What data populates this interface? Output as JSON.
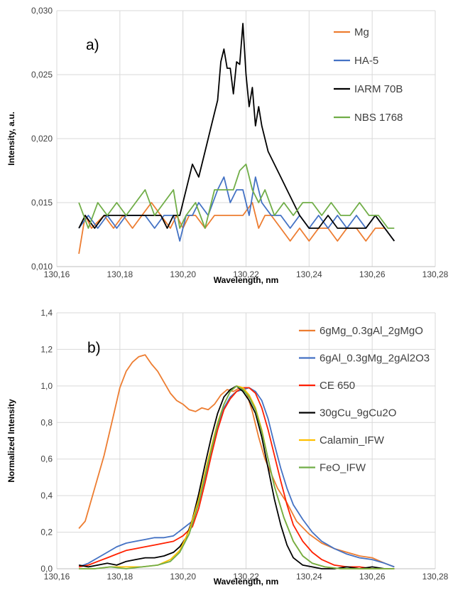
{
  "chart_data": [
    {
      "type": "line",
      "panel_label": "a)",
      "xlabel": "Wavelength, nm",
      "ylabel": "Intensity, a.u.",
      "xlim": [
        130.16,
        130.28
      ],
      "ylim": [
        0.01,
        0.03
      ],
      "x_ticks": [
        "130,16",
        "130,18",
        "130,20",
        "130,22",
        "130,24",
        "130,26",
        "130,28"
      ],
      "y_ticks": [
        "0,010",
        "0,015",
        "0,020",
        "0,025",
        "0,030"
      ],
      "grid": true,
      "legend_position": "right",
      "series": [
        {
          "name": "Mg",
          "color": "#ED7D31",
          "x": [
            130.167,
            130.169,
            130.171,
            130.175,
            130.178,
            130.181,
            130.184,
            130.187,
            130.19,
            130.193,
            130.196,
            130.198,
            130.2,
            130.202,
            130.204,
            130.207,
            130.21,
            130.213,
            130.216,
            130.219,
            130.222,
            130.224,
            130.226,
            130.228,
            130.231,
            130.234,
            130.237,
            130.24,
            130.243,
            130.246,
            130.249,
            130.252,
            130.255,
            130.258,
            130.261,
            130.264,
            130.267
          ],
          "y": [
            0.011,
            0.014,
            0.013,
            0.014,
            0.013,
            0.014,
            0.013,
            0.014,
            0.015,
            0.014,
            0.013,
            0.014,
            0.013,
            0.014,
            0.014,
            0.013,
            0.014,
            0.014,
            0.014,
            0.014,
            0.015,
            0.013,
            0.014,
            0.014,
            0.013,
            0.012,
            0.013,
            0.012,
            0.013,
            0.013,
            0.012,
            0.013,
            0.013,
            0.012,
            0.013,
            0.013,
            0.012
          ]
        },
        {
          "name": "HA-5",
          "color": "#4472C4",
          "x": [
            130.167,
            130.17,
            130.173,
            130.176,
            130.179,
            130.182,
            130.185,
            130.188,
            130.191,
            130.194,
            130.197,
            130.199,
            130.201,
            130.203,
            130.205,
            130.208,
            130.211,
            130.213,
            130.215,
            130.217,
            130.219,
            130.221,
            130.223,
            130.225,
            130.228,
            130.231,
            130.234,
            130.237,
            130.24,
            130.243,
            130.246,
            130.249,
            130.252,
            130.255,
            130.258,
            130.261,
            130.264,
            130.267
          ],
          "y": [
            0.013,
            0.014,
            0.013,
            0.014,
            0.013,
            0.014,
            0.014,
            0.014,
            0.013,
            0.014,
            0.014,
            0.012,
            0.014,
            0.014,
            0.015,
            0.014,
            0.016,
            0.017,
            0.015,
            0.016,
            0.016,
            0.014,
            0.017,
            0.015,
            0.014,
            0.014,
            0.013,
            0.014,
            0.013,
            0.014,
            0.013,
            0.014,
            0.013,
            0.014,
            0.013,
            0.014,
            0.013,
            0.012
          ]
        },
        {
          "name": "IARM 70B",
          "color": "#000000",
          "x": [
            130.167,
            130.169,
            130.172,
            130.175,
            130.178,
            130.181,
            130.184,
            130.187,
            130.19,
            130.193,
            130.195,
            130.197,
            130.199,
            130.201,
            130.203,
            130.205,
            130.207,
            130.209,
            130.211,
            130.212,
            130.213,
            130.214,
            130.215,
            130.216,
            130.217,
            130.218,
            130.219,
            130.22,
            130.221,
            130.222,
            130.223,
            130.224,
            130.225,
            130.227,
            130.229,
            130.231,
            130.233,
            130.235,
            130.237,
            130.24,
            130.243,
            130.246,
            130.249,
            130.252,
            130.255,
            130.258,
            130.261,
            130.264,
            130.267
          ],
          "y": [
            0.013,
            0.014,
            0.013,
            0.014,
            0.014,
            0.014,
            0.014,
            0.014,
            0.014,
            0.014,
            0.013,
            0.014,
            0.014,
            0.016,
            0.018,
            0.017,
            0.019,
            0.021,
            0.023,
            0.026,
            0.027,
            0.0255,
            0.0255,
            0.0235,
            0.026,
            0.0258,
            0.029,
            0.025,
            0.0225,
            0.024,
            0.021,
            0.0225,
            0.021,
            0.019,
            0.018,
            0.017,
            0.016,
            0.015,
            0.014,
            0.013,
            0.013,
            0.014,
            0.013,
            0.013,
            0.013,
            0.013,
            0.014,
            0.013,
            0.012
          ]
        },
        {
          "name": "NBS 1768",
          "color": "#70AD47",
          "x": [
            130.167,
            130.17,
            130.173,
            130.176,
            130.179,
            130.182,
            130.185,
            130.188,
            130.191,
            130.194,
            130.197,
            130.199,
            130.201,
            130.204,
            130.207,
            130.21,
            130.213,
            130.216,
            130.218,
            130.22,
            130.222,
            130.224,
            130.226,
            130.229,
            130.232,
            130.235,
            130.238,
            130.241,
            130.244,
            130.247,
            130.25,
            130.253,
            130.256,
            130.259,
            130.262,
            130.265,
            130.267
          ],
          "y": [
            0.015,
            0.013,
            0.015,
            0.014,
            0.015,
            0.014,
            0.015,
            0.016,
            0.014,
            0.015,
            0.016,
            0.013,
            0.014,
            0.015,
            0.013,
            0.016,
            0.016,
            0.016,
            0.0175,
            0.018,
            0.016,
            0.015,
            0.016,
            0.014,
            0.015,
            0.014,
            0.015,
            0.015,
            0.014,
            0.015,
            0.014,
            0.014,
            0.015,
            0.014,
            0.014,
            0.013,
            0.013
          ]
        }
      ]
    },
    {
      "type": "line",
      "panel_label": "b)",
      "xlabel": "Wavelength, nm",
      "ylabel": "Normalized Intensity",
      "xlim": [
        130.16,
        130.28
      ],
      "ylim": [
        0.0,
        1.4
      ],
      "x_ticks": [
        "130,16",
        "130,18",
        "130,20",
        "130,22",
        "130,24",
        "130,26",
        "130,28"
      ],
      "y_ticks": [
        "0,0",
        "0,2",
        "0,4",
        "0,6",
        "0,8",
        "1,0",
        "1,2",
        "1,4"
      ],
      "grid": true,
      "legend_position": "right",
      "series": [
        {
          "name": "6gMg_0.3gAl_2gMgO",
          "color": "#ED7D31",
          "x": [
            130.167,
            130.169,
            130.172,
            130.175,
            130.178,
            130.18,
            130.182,
            130.184,
            130.186,
            130.188,
            130.19,
            130.192,
            130.194,
            130.196,
            130.198,
            130.2,
            130.202,
            130.204,
            130.206,
            130.208,
            130.21,
            130.212,
            130.214,
            130.216,
            130.218,
            130.22,
            130.222,
            130.224,
            130.226,
            130.228,
            130.23,
            130.233,
            130.236,
            130.24,
            130.244,
            130.248,
            130.252,
            130.256,
            130.26,
            130.264,
            130.267
          ],
          "y": [
            0.22,
            0.26,
            0.44,
            0.62,
            0.84,
            0.99,
            1.08,
            1.13,
            1.16,
            1.17,
            1.12,
            1.08,
            1.02,
            0.96,
            0.92,
            0.9,
            0.87,
            0.86,
            0.88,
            0.87,
            0.9,
            0.95,
            0.98,
            0.97,
            0.99,
            0.97,
            0.86,
            0.72,
            0.6,
            0.52,
            0.44,
            0.36,
            0.26,
            0.19,
            0.14,
            0.11,
            0.09,
            0.07,
            0.06,
            0.03,
            0.01
          ]
        },
        {
          "name": "6gAl_0.3gMg_2gAl2O3",
          "color": "#4472C4",
          "x": [
            130.167,
            130.17,
            130.173,
            130.176,
            130.179,
            130.182,
            130.185,
            130.188,
            130.191,
            130.194,
            130.197,
            130.2,
            130.203,
            130.205,
            130.207,
            130.209,
            130.211,
            130.213,
            130.215,
            130.217,
            130.219,
            130.221,
            130.223,
            130.225,
            130.227,
            130.229,
            130.231,
            130.233,
            130.235,
            130.238,
            130.241,
            130.244,
            130.248,
            130.252,
            130.256,
            130.26,
            130.264,
            130.267
          ],
          "y": [
            0.01,
            0.03,
            0.06,
            0.09,
            0.12,
            0.14,
            0.15,
            0.16,
            0.17,
            0.17,
            0.18,
            0.22,
            0.26,
            0.36,
            0.5,
            0.64,
            0.78,
            0.88,
            0.94,
            0.97,
            0.98,
            0.99,
            0.97,
            0.92,
            0.82,
            0.68,
            0.55,
            0.44,
            0.35,
            0.27,
            0.2,
            0.15,
            0.11,
            0.08,
            0.06,
            0.05,
            0.03,
            0.01
          ]
        },
        {
          "name": "CE 650",
          "color": "#FF2000",
          "x": [
            130.167,
            130.17,
            130.173,
            130.176,
            130.179,
            130.182,
            130.185,
            130.188,
            130.191,
            130.194,
            130.197,
            130.2,
            130.203,
            130.205,
            130.207,
            130.209,
            130.211,
            130.213,
            130.215,
            130.217,
            130.219,
            130.221,
            130.223,
            130.225,
            130.227,
            130.229,
            130.231,
            130.233,
            130.235,
            130.238,
            130.241,
            130.244,
            130.248,
            130.252,
            130.256,
            130.26,
            130.264,
            130.267
          ],
          "y": [
            0.01,
            0.02,
            0.04,
            0.06,
            0.08,
            0.1,
            0.11,
            0.12,
            0.13,
            0.14,
            0.15,
            0.18,
            0.23,
            0.33,
            0.47,
            0.62,
            0.76,
            0.87,
            0.93,
            0.97,
            0.99,
            0.99,
            0.96,
            0.88,
            0.76,
            0.62,
            0.48,
            0.35,
            0.24,
            0.15,
            0.09,
            0.05,
            0.02,
            0.01,
            0.01,
            0.0,
            0.0,
            0.0
          ]
        },
        {
          "name": "30gCu_9gCu2O",
          "color": "#000000",
          "x": [
            130.167,
            130.17,
            130.173,
            130.176,
            130.179,
            130.182,
            130.185,
            130.188,
            130.191,
            130.194,
            130.197,
            130.199,
            130.201,
            130.203,
            130.205,
            130.207,
            130.209,
            130.211,
            130.213,
            130.215,
            130.217,
            130.219,
            130.221,
            130.223,
            130.225,
            130.227,
            130.229,
            130.231,
            130.233,
            130.235,
            130.238,
            130.241,
            130.244,
            130.248,
            130.252,
            130.256,
            130.26,
            130.264,
            130.267
          ],
          "y": [
            0.02,
            0.01,
            0.02,
            0.03,
            0.02,
            0.04,
            0.05,
            0.06,
            0.06,
            0.07,
            0.09,
            0.12,
            0.17,
            0.27,
            0.41,
            0.57,
            0.72,
            0.85,
            0.94,
            0.98,
            1.0,
            0.97,
            0.92,
            0.85,
            0.72,
            0.55,
            0.38,
            0.24,
            0.13,
            0.06,
            0.02,
            0.01,
            0.0,
            0.0,
            0.01,
            0.0,
            0.01,
            0.0,
            0.0
          ]
        },
        {
          "name": "Calamin_IFW",
          "color": "#FFC000",
          "x": [
            130.167,
            130.172,
            130.177,
            130.182,
            130.187,
            130.192,
            130.196,
            130.199,
            130.202,
            130.205,
            130.208,
            130.211,
            130.213,
            130.215,
            130.217,
            130.219,
            130.221,
            130.223,
            130.225,
            130.227,
            130.229,
            130.232,
            130.235,
            130.238,
            130.241,
            130.245,
            130.25,
            130.255,
            130.26,
            130.267
          ],
          "y": [
            0.0,
            0.0,
            0.01,
            0.01,
            0.01,
            0.02,
            0.05,
            0.1,
            0.21,
            0.38,
            0.6,
            0.8,
            0.9,
            0.97,
            1.0,
            0.99,
            0.95,
            0.88,
            0.76,
            0.6,
            0.45,
            0.28,
            0.15,
            0.07,
            0.03,
            0.01,
            0.0,
            0.0,
            0.0,
            0.0
          ]
        },
        {
          "name": "FeO_IFW",
          "color": "#70AD47",
          "x": [
            130.167,
            130.172,
            130.177,
            130.182,
            130.187,
            130.192,
            130.196,
            130.199,
            130.202,
            130.205,
            130.208,
            130.211,
            130.213,
            130.215,
            130.217,
            130.219,
            130.221,
            130.223,
            130.225,
            130.227,
            130.229,
            130.232,
            130.235,
            130.238,
            130.241,
            130.245,
            130.25,
            130.255,
            130.26,
            130.267
          ],
          "y": [
            0.0,
            0.0,
            0.01,
            0.0,
            0.01,
            0.02,
            0.04,
            0.09,
            0.19,
            0.36,
            0.58,
            0.79,
            0.9,
            0.97,
            1.0,
            0.98,
            0.94,
            0.87,
            0.75,
            0.6,
            0.45,
            0.28,
            0.15,
            0.07,
            0.03,
            0.01,
            0.0,
            0.0,
            0.0,
            0.0
          ]
        }
      ]
    }
  ]
}
